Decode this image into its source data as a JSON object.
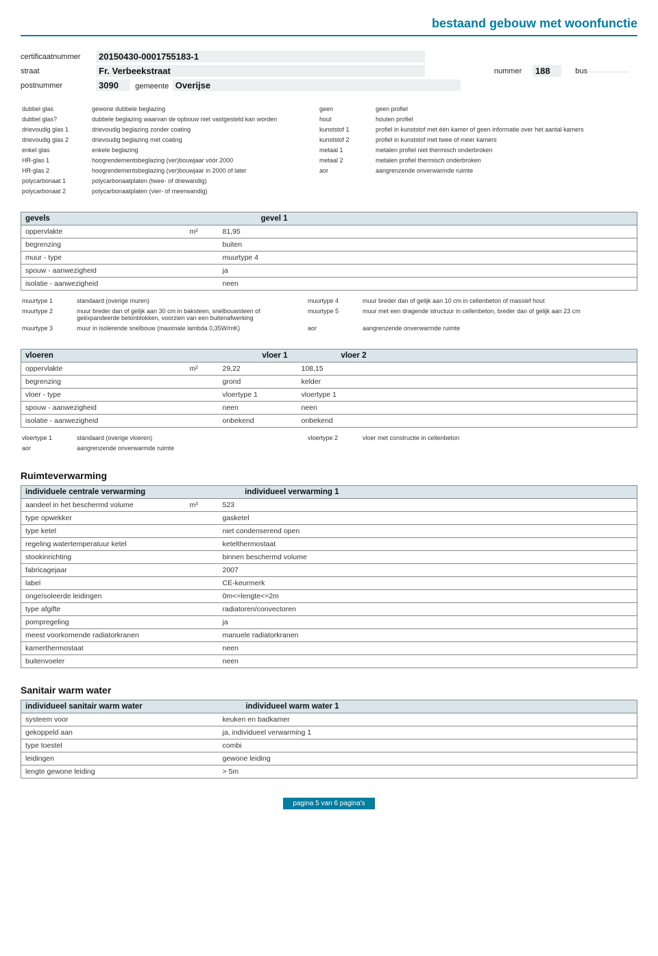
{
  "title": "bestaand gebouw met woonfunctie",
  "header": {
    "cert_label": "certificaatnummer",
    "cert_value": "20150430-0001755183-1",
    "straat_label": "straat",
    "straat_value": "Fr. Verbeekstraat",
    "nummer_label": "nummer",
    "nummer_value": "188",
    "bus_label": "bus",
    "bus_value": "",
    "postnummer_label": "postnummer",
    "postnummer_value": "3090",
    "gemeente_label": "gemeente",
    "gemeente_value": "Overijse"
  },
  "legend1": [
    [
      "dubbel glas",
      "gewone dubbele beglazing",
      "geen",
      "geen profiel"
    ],
    [
      "dubbel glas?",
      "dubbele beglazing waarvan de opbouw niet vastgesteld kan worden",
      "hout",
      "houten profiel"
    ],
    [
      "drievoudig glas 1",
      "drievoudig beglazing zonder coating",
      "kunststof 1",
      "profiel in kunststof met één kamer of geen informatie over het aantal kamers"
    ],
    [
      "drievoudig glas 2",
      "drievoudig beglazing met coating",
      "kunststof 2",
      "profiel in kunststof met twee of meer kamers"
    ],
    [
      "enkel glas",
      "enkele beglazing",
      "metaal 1",
      "metalen profiel niet thermisch onderbroken"
    ],
    [
      "HR-glas 1",
      "hoogrendementsbeglazing (ver)bouwjaar vóór 2000",
      "metaal 2",
      "metalen profiel thermisch onderbroken"
    ],
    [
      "HR-glas 2",
      "hoogrendementsbeglazing (ver)bouwjaar in 2000 of later",
      "aor",
      "aangrenzende onverwarmde ruimte"
    ],
    [
      "polycarbonaat 1",
      "polycarbonaatplaten (twee- of driewandig)",
      "",
      ""
    ],
    [
      "polycarbonaat 2",
      "polycarbonaatplaten (vier- of meerwandig)",
      "",
      ""
    ]
  ],
  "gevels": {
    "heading": "gevels",
    "col_heading": "gevel 1",
    "rows": [
      [
        "oppervlakte",
        "m²",
        "81,95"
      ],
      [
        "begrenzing",
        "",
        "buiten"
      ],
      [
        "muur - type",
        "",
        "muurtype 4"
      ],
      [
        "spouw - aanwezigheid",
        "",
        "ja"
      ],
      [
        "isolatie - aanwezigheid",
        "",
        "neen"
      ]
    ],
    "legend": [
      [
        "muurtype 1",
        "standaard (overige muren)",
        "muurtype 4",
        "muur breder dan of gelijk aan 10 cm in cellenbeton of massief hout"
      ],
      [
        "muurtype 2",
        "muur breder dan of gelijk aan 30 cm in baksteen, snelbouwsteen of geëxpandeerde betonblokken, voorzien van een buitenafwerking",
        "muurtype 5",
        "muur met een dragende structuur in cellenbeton, breder dan of gelijk aan 23 cm"
      ],
      [
        "muurtype 3",
        "muur in isolerende snelbouw (maximale lambda 0,35W/mK)",
        "aor",
        "aangrenzende onverwarmde ruimte"
      ]
    ]
  },
  "vloeren": {
    "heading": "vloeren",
    "col_heading1": "vloer 1",
    "col_heading2": "vloer 2",
    "rows": [
      [
        "oppervlakte",
        "m²",
        "29,22",
        "108,15"
      ],
      [
        "begrenzing",
        "",
        "grond",
        "kelder"
      ],
      [
        "vloer - type",
        "",
        "vloertype 1",
        "vloertype 1"
      ],
      [
        "spouw - aanwezigheid",
        "",
        "neen",
        "neen"
      ],
      [
        "isolatie - aanwezigheid",
        "",
        "onbekend",
        "onbekend"
      ]
    ],
    "legend": [
      [
        "vloertype 1",
        "standaard (overige vloeren)",
        "vloertype 2",
        "vloer met constructie in cellenbeton"
      ],
      [
        "aor",
        "aangrenzende onverwarmde ruimte",
        "",
        ""
      ]
    ]
  },
  "ruimte_heading": "Ruimteverwarming",
  "verwarming": {
    "heading": "individuele centrale verwarming",
    "col_heading": "individueel verwarming 1",
    "rows": [
      [
        "aandeel in het beschermd volume",
        "m³",
        "523"
      ],
      [
        "type opwekker",
        "",
        "gasketel"
      ],
      [
        "type ketel",
        "",
        "niet condenserend open"
      ],
      [
        "regeling watertemperatuur ketel",
        "",
        "ketelthermostaat"
      ],
      [
        "stookinrichting",
        "",
        "binnen beschermd volume"
      ],
      [
        "fabricagejaar",
        "",
        "2007"
      ],
      [
        "label",
        "",
        "CE-keurmerk"
      ],
      [
        "ongeïsoleerde leidingen",
        "",
        "0m<=lengte<=2m"
      ],
      [
        "type afgifte",
        "",
        "radiatoren/convectoren"
      ],
      [
        "pompregeling",
        "",
        "ja"
      ],
      [
        "meest voorkomende radiatorkranen",
        "",
        "manuele radiatorkranen"
      ],
      [
        "kamerthermostaat",
        "",
        "neen"
      ],
      [
        "buitenvoeler",
        "",
        "neen"
      ]
    ]
  },
  "sanitair_heading": "Sanitair warm water",
  "sanitair": {
    "heading": "individueel sanitair warm water",
    "col_heading": "individueel warm water 1",
    "rows": [
      [
        "systeem voor",
        "",
        "keuken en badkamer"
      ],
      [
        "gekoppeld aan",
        "",
        "ja, individueel verwarming 1"
      ],
      [
        "type toestel",
        "",
        "combi"
      ],
      [
        "leidingen",
        "",
        "gewone leiding"
      ],
      [
        "lengte gewone leiding",
        "",
        "> 5m"
      ]
    ]
  },
  "footer": "pagina 5 van 6 pagina's"
}
